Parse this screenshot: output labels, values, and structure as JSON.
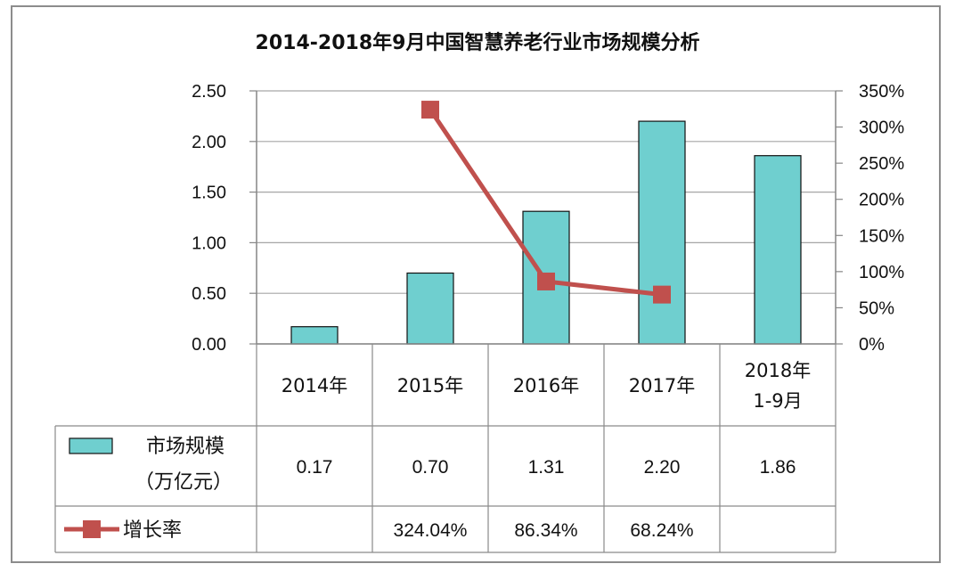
{
  "chart_data": {
    "type": "bar",
    "title": "2014-2018年9月中国智慧养老行业市场规模分析",
    "categories": [
      "2014年",
      "2015年",
      "2016年",
      "2017年",
      "2018年\n1-9月"
    ],
    "series": [
      {
        "name": "市场规模（万亿元）",
        "type": "bar",
        "axis": "left",
        "color": "#6fcfcf",
        "values": [
          0.17,
          0.7,
          1.31,
          2.2,
          1.86
        ],
        "labels": [
          "0.17",
          "0.70",
          "1.31",
          "2.20",
          "1.86"
        ]
      },
      {
        "name": "增长率",
        "type": "line",
        "axis": "right",
        "color": "#c0504d",
        "values": [
          null,
          324.04,
          86.34,
          68.24,
          null
        ],
        "labels": [
          "",
          "324.04%",
          "86.34%",
          "68.24%",
          ""
        ]
      }
    ],
    "y_left": {
      "min": 0,
      "max": 2.5,
      "ticks": [
        "0.00",
        "0.50",
        "1.00",
        "1.50",
        "2.00",
        "2.50"
      ]
    },
    "y_right": {
      "min": 0,
      "max": 350,
      "ticks": [
        "0%",
        "50%",
        "100%",
        "150%",
        "200%",
        "250%",
        "300%",
        "350%"
      ]
    },
    "grid": true,
    "legend": "data-table",
    "legend_labels": {
      "bar_line1": "市场规模",
      "bar_line2": "（万亿元）",
      "line": "增长率"
    }
  }
}
